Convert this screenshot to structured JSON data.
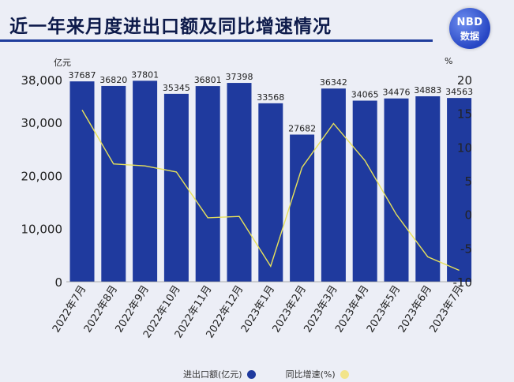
{
  "header": {
    "title": "近一年来月度进出口额及同比增速情况",
    "logo_line1": "NBD",
    "logo_line2": "数据"
  },
  "chart_data": {
    "type": "bar",
    "categories": [
      "2022年7月",
      "2022年8月",
      "2022年9月",
      "2022年10月",
      "2022年11月",
      "2022年12月",
      "2023年1月",
      "2023年2月",
      "2023年3月",
      "2023年4月",
      "2023年5月",
      "2023年6月",
      "2023年7月"
    ],
    "series": [
      {
        "name": "进出口额(亿元)",
        "type": "bar",
        "axis": "left",
        "color": "#1f3a9e",
        "values": [
          37687,
          36820,
          37801,
          35345,
          36801,
          37398,
          33568,
          27682,
          36342,
          34065,
          34476,
          34883,
          34563
        ],
        "labels": [
          "37687",
          "36820",
          "37801",
          "35345",
          "36801",
          "37398",
          "33568",
          "27682",
          "36342",
          "34065",
          "34476",
          "34883",
          "34563"
        ]
      },
      {
        "name": "同比增速(%)",
        "type": "line",
        "axis": "right",
        "color": "#e8e25a",
        "values": [
          15.5,
          7.5,
          7.2,
          6.3,
          -0.5,
          -0.3,
          -7.7,
          7.0,
          13.5,
          8.0,
          0.0,
          -6.3,
          -8.3
        ]
      }
    ],
    "left_axis": {
      "unit": "亿元",
      "ylim": [
        0,
        38000
      ],
      "ticks": [
        0,
        10000,
        20000,
        30000,
        38000
      ],
      "tick_labels": [
        "0",
        "10,000",
        "20,000",
        "30,000",
        "38,000"
      ]
    },
    "right_axis": {
      "unit": "%",
      "ylim": [
        -10,
        20
      ],
      "ticks": [
        -10,
        -5,
        0,
        5,
        10,
        15,
        20
      ],
      "tick_labels": [
        "-10",
        "-5",
        "0",
        "5",
        "10",
        "15",
        "20"
      ]
    },
    "legend": "bottom-center",
    "grid": false
  },
  "legend": {
    "bar_label": "进出口额(亿元)",
    "line_label": "同比增速(%)",
    "bar_color": "#1f3a9e",
    "line_color": "#f2e48a"
  }
}
